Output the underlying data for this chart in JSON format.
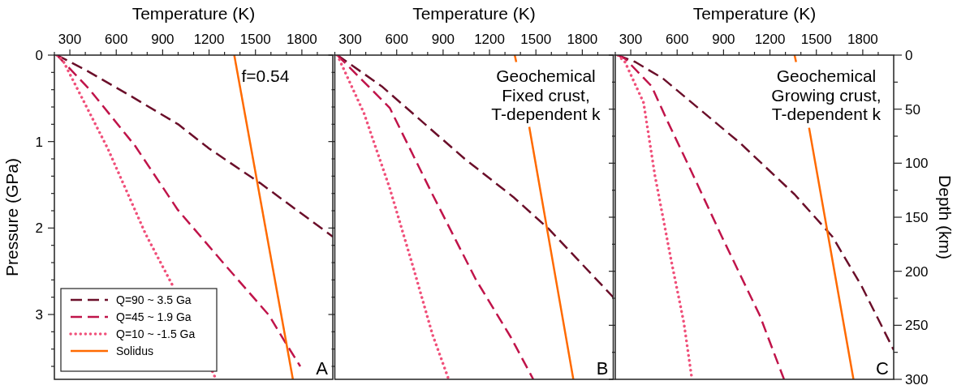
{
  "chart_data": [
    {
      "type": "line",
      "xlabel": "Temperature (K)",
      "ylabel": "Pressure (GPa)",
      "xlim": [
        200,
        2000
      ],
      "ylim": [
        3.75,
        0
      ],
      "xticks": [
        {
          "value": 200,
          "label": null
        },
        300,
        {
          "value": 400,
          "label": null
        },
        {
          "value": 500,
          "label": null
        },
        600,
        {
          "value": 700,
          "label": null
        },
        {
          "value": 800,
          "label": null
        },
        900,
        {
          "value": 1000,
          "label": null
        },
        {
          "value": 1100,
          "label": null
        },
        1200,
        {
          "value": 1300,
          "label": null
        },
        {
          "value": 1400,
          "label": null
        },
        1500,
        {
          "value": 1600,
          "label": null
        },
        {
          "value": 1700,
          "label": null
        },
        1800,
        {
          "value": 1900,
          "label": null
        }
      ],
      "yticks": [
        0,
        {
          "value": 0.2,
          "label": null
        },
        {
          "value": 0.4,
          "label": null
        },
        {
          "value": 0.6,
          "label": null
        },
        {
          "value": 0.8,
          "label": null
        },
        1,
        {
          "value": 1.2,
          "label": null
        },
        {
          "value": 1.4,
          "label": null
        },
        {
          "value": 1.6,
          "label": null
        },
        {
          "value": 1.8,
          "label": null
        },
        2,
        {
          "value": 2.2,
          "label": null
        },
        {
          "value": 2.4,
          "label": null
        },
        {
          "value": 2.6,
          "label": null
        },
        {
          "value": 2.8,
          "label": null
        },
        3,
        {
          "value": 3.2,
          "label": null
        },
        {
          "value": 3.4,
          "label": null
        },
        {
          "value": 3.6,
          "label": null
        }
      ],
      "legend": "bottom left",
      "marker": "none",
      "series": [
        {
          "name": "Q=90 ~ 3.5 Ga",
          "color": "#6b0f2a",
          "line_style": "dashed",
          "x": [
            216,
            400,
            700,
            1000,
            1200,
            1530,
            2000
          ],
          "values": [
            0,
            0.17,
            0.48,
            0.8,
            1.08,
            1.48,
            2.1
          ]
        },
        {
          "name": "Q=45 ~ 1.9 Ga",
          "color": "#c0144a",
          "line_style": "dashed",
          "x": [
            216,
            424,
            722,
            998,
            1300,
            1588,
            1692,
            1790
          ],
          "values": [
            0,
            0.39,
            1.05,
            1.79,
            2.42,
            3.01,
            3.32,
            3.6
          ]
        },
        {
          "name": "Q=10 ~ -1.5 Ga",
          "color": "#f0507a",
          "line_style": "dotted",
          "x": [
            216,
            252,
            545,
            790,
            963,
            1100,
            1222,
            1245
          ],
          "values": [
            0,
            0.05,
            1.08,
            2.07,
            2.66,
            null,
            3.66,
            3.75
          ]
        },
        {
          "name": "Solidus",
          "color": "#ff6a00",
          "line_style": "solid",
          "x": [
            1363,
            1742
          ],
          "values": [
            0,
            3.75
          ]
        }
      ],
      "annotations": [
        "f=0.54",
        "A"
      ]
    },
    {
      "type": "line",
      "xlabel": "Temperature (K)",
      "xlim": [
        200,
        2000
      ],
      "ylim": [
        3.75,
        0
      ],
      "tick_labels": "x",
      "xticks": [
        {
          "value": 200,
          "label": null
        },
        300,
        {
          "value": 400,
          "label": null
        },
        {
          "value": 500,
          "label": null
        },
        600,
        {
          "value": 700,
          "label": null
        },
        {
          "value": 800,
          "label": null
        },
        900,
        {
          "value": 1000,
          "label": null
        },
        {
          "value": 1100,
          "label": null
        },
        1200,
        {
          "value": 1300,
          "label": null
        },
        {
          "value": 1400,
          "label": null
        },
        1500,
        {
          "value": 1600,
          "label": null
        },
        {
          "value": 1700,
          "label": null
        },
        1800,
        {
          "value": 1900,
          "label": null
        }
      ],
      "yticks": [
        0,
        {
          "value": 0.2,
          "label": null
        },
        {
          "value": 0.4,
          "label": null
        },
        {
          "value": 0.6,
          "label": null
        },
        {
          "value": 0.8,
          "label": null
        },
        1,
        {
          "value": 1.2,
          "label": null
        },
        {
          "value": 1.4,
          "label": null
        },
        {
          "value": 1.6,
          "label": null
        },
        {
          "value": 1.8,
          "label": null
        },
        2,
        {
          "value": 2.2,
          "label": null
        },
        {
          "value": 2.4,
          "label": null
        },
        {
          "value": 2.6,
          "label": null
        },
        {
          "value": 2.8,
          "label": null
        },
        3,
        {
          "value": 3.2,
          "label": null
        },
        {
          "value": 3.4,
          "label": null
        },
        {
          "value": 3.6,
          "label": null
        }
      ],
      "marker": "none",
      "series": [
        {
          "color": "#6b0f2a",
          "line_style": "dashed",
          "x": [
            216,
            503,
            1040,
            1353,
            1583,
            2000
          ],
          "values": [
            0,
            0.36,
            1.2,
            1.64,
            2.01,
            2.8
          ]
        },
        {
          "color": "#c0144a",
          "line_style": "dashed",
          "x": [
            216,
            555,
            831,
            1113,
            1337,
            1483
          ],
          "values": [
            0,
            0.61,
            1.61,
            2.6,
            3.26,
            3.75
          ]
        },
        {
          "color": "#f0507a",
          "line_style": "dotted",
          "x": [
            216,
            388,
            555,
            711,
            831,
            936
          ],
          "values": [
            0,
            0.67,
            1.54,
            2.48,
            3.23,
            3.75
          ]
        },
        {
          "color": "#ff6a00",
          "line_style": "solid",
          "x": [
            1363,
            1373,
            1400,
            1457,
            1742
          ],
          "values": [
            0,
            0.08,
            null,
            0.83,
            3.75
          ]
        }
      ],
      "annotations": [
        "Geochemical\nFixed crust,\nT-dependent k",
        "B"
      ]
    },
    {
      "type": "line",
      "xlabel": "Temperature (K)",
      "xlim": [
        200,
        2000
      ],
      "ylim": [
        3.75,
        0
      ],
      "xticks": [
        {
          "value": 200,
          "label": null
        },
        300,
        {
          "value": 400,
          "label": null
        },
        {
          "value": 500,
          "label": null
        },
        600,
        {
          "value": 700,
          "label": null
        },
        {
          "value": 800,
          "label": null
        },
        900,
        {
          "value": 1000,
          "label": null
        },
        {
          "value": 1100,
          "label": null
        },
        1200,
        {
          "value": 1300,
          "label": null
        },
        {
          "value": 1400,
          "label": null
        },
        1500,
        {
          "value": 1600,
          "label": null
        },
        {
          "value": 1700,
          "label": null
        },
        1800,
        {
          "value": 1900,
          "label": null
        }
      ],
      "y2label": "Depth (km)",
      "y2lim": [
        300,
        0
      ],
      "y2ticks": [
        0,
        {
          "value": 25,
          "label": null
        },
        50,
        {
          "value": 75,
          "label": null
        },
        100,
        {
          "value": 125,
          "label": null
        },
        150,
        {
          "value": 175,
          "label": null
        },
        200,
        {
          "value": 225,
          "label": null
        },
        250,
        {
          "value": 275,
          "label": null
        },
        300
      ],
      "marker": "none",
      "series": [
        {
          "color": "#6b0f2a",
          "line_style": "dashed",
          "x": [
            216,
            330,
            508,
            1009,
            1359,
            1604,
            1792,
            2000
          ],
          "values": [
            0,
            0.08,
            0.27,
            1.02,
            1.61,
            2.1,
            2.67,
            3.41
          ]
        },
        {
          "color": "#c0144a",
          "line_style": "dashed",
          "x": [
            216,
            263,
            435,
            539,
            680,
            889,
            1134,
            1291
          ],
          "values": [
            0,
            0.04,
            0.36,
            0.77,
            1.3,
            2.1,
            3.01,
            3.75
          ]
        },
        {
          "color": "#f0507a",
          "line_style": "dotted",
          "x": [
            216,
            263,
            383,
            456,
            560,
            644,
            696
          ],
          "values": [
            0,
            0.08,
            0.55,
            1.39,
            2.36,
            3.1,
            3.75
          ]
        },
        {
          "color": "#ff6a00",
          "line_style": "solid",
          "x": [
            1359,
            1369,
            1400,
            1453,
            1740
          ],
          "values": [
            0,
            0.08,
            null,
            0.84,
            3.75
          ]
        }
      ],
      "annotations": [
        "Geochemical\nGrowing crust,\nT-dependent k",
        "C"
      ]
    }
  ]
}
